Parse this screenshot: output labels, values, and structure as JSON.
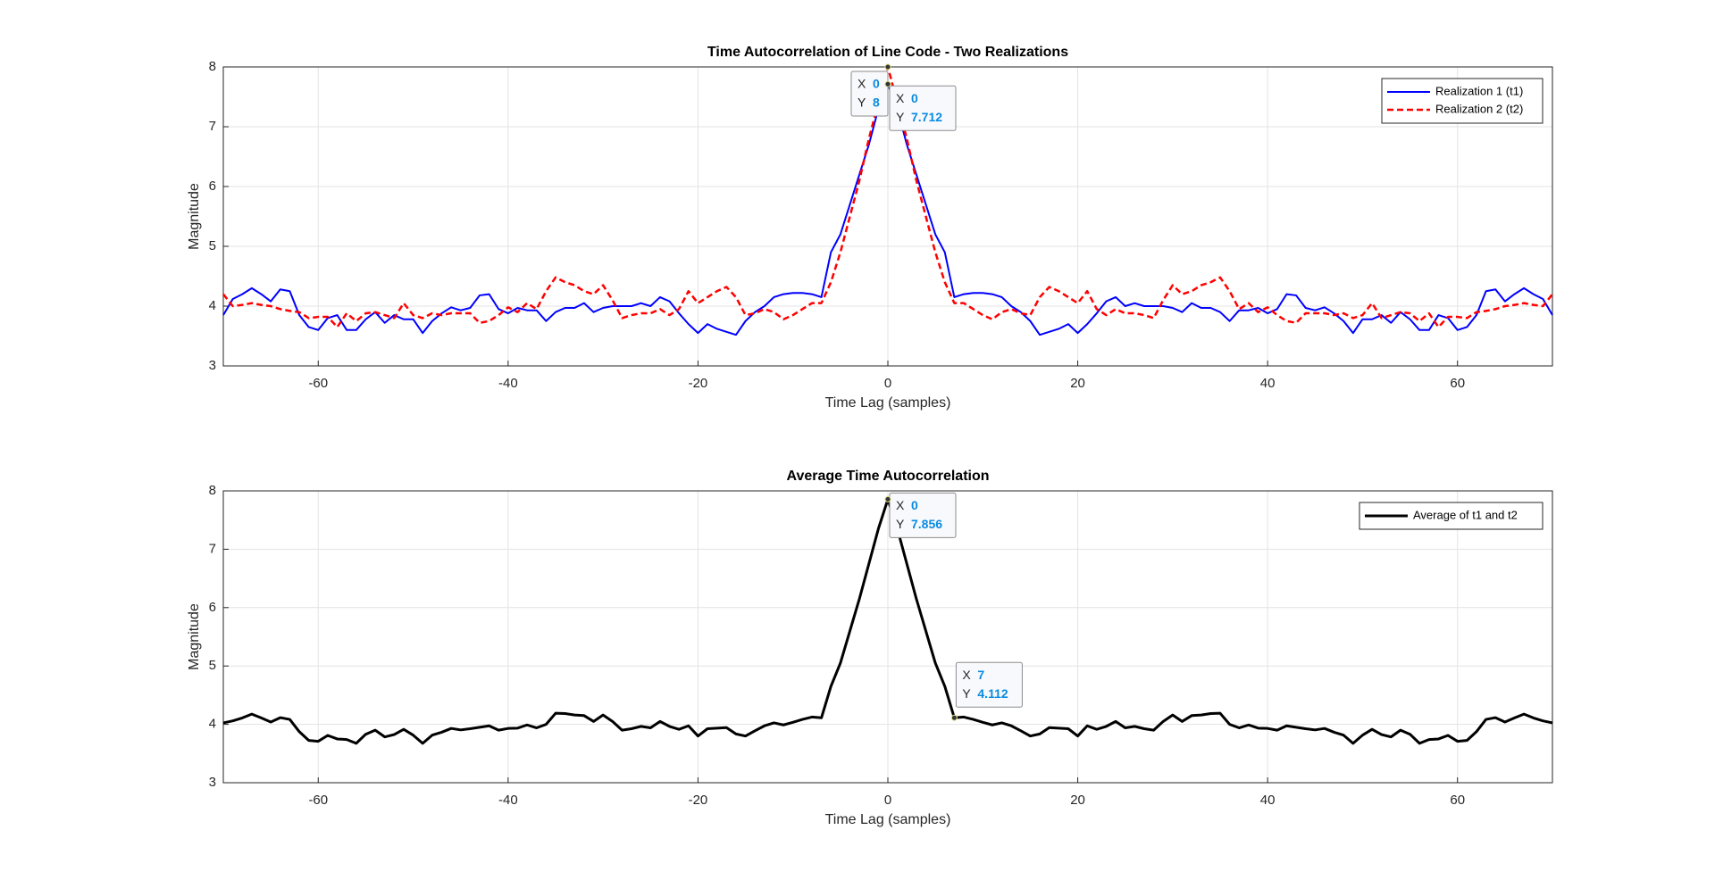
{
  "chart_data": [
    {
      "type": "line",
      "title": "Time Autocorrelation of Line Code - Two Realizations",
      "xlabel": "Time Lag (samples)",
      "ylabel": "Magnitude",
      "x": [
        -70,
        -69,
        -68,
        -67,
        -66,
        -65,
        -64,
        -63,
        -62,
        -61,
        -60,
        -59,
        -58,
        -57,
        -56,
        -55,
        -54,
        -53,
        -52,
        -51,
        -50,
        -49,
        -48,
        -47,
        -46,
        -45,
        -44,
        -43,
        -42,
        -41,
        -40,
        -39,
        -38,
        -37,
        -36,
        -35,
        -34,
        -33,
        -32,
        -31,
        -30,
        -29,
        -28,
        -27,
        -26,
        -25,
        -24,
        -23,
        -22,
        -21,
        -20,
        -19,
        -18,
        -17,
        -16,
        -15,
        -14,
        -13,
        -12,
        -11,
        -10,
        -9,
        -8,
        -7,
        -6,
        -5,
        -4,
        -3,
        -2,
        -1,
        0,
        1,
        2,
        3,
        4,
        5,
        6,
        7,
        8,
        9,
        10,
        11,
        12,
        13,
        14,
        15,
        16,
        17,
        18,
        19,
        20,
        21,
        22,
        23,
        24,
        25,
        26,
        27,
        28,
        29,
        30,
        31,
        32,
        33,
        34,
        35,
        36,
        37,
        38,
        39,
        40,
        41,
        42,
        43,
        44,
        45,
        46,
        47,
        48,
        49,
        50,
        51,
        52,
        53,
        54,
        55,
        56,
        57,
        58,
        59,
        60,
        61,
        62,
        63,
        64,
        65,
        66,
        67,
        68,
        69,
        70
      ],
      "series": [
        {
          "name": "Realization 1 (t1)",
          "color": "#0000ff",
          "linestyle": "solid",
          "linewidth": 2,
          "values": [
            3.85,
            4.12,
            4.2,
            4.3,
            4.2,
            4.08,
            4.28,
            4.25,
            3.85,
            3.65,
            3.6,
            3.8,
            3.85,
            3.6,
            3.6,
            3.78,
            3.9,
            3.72,
            3.85,
            3.78,
            3.78,
            3.55,
            3.75,
            3.88,
            3.98,
            3.93,
            3.97,
            4.18,
            4.2,
            3.95,
            3.88,
            3.97,
            3.93,
            3.93,
            3.75,
            3.9,
            3.97,
            3.97,
            4.05,
            3.9,
            3.97,
            4.0,
            4.0,
            4.0,
            4.05,
            4.0,
            4.15,
            4.08,
            3.88,
            3.7,
            3.55,
            3.7,
            3.62,
            3.57,
            3.52,
            3.75,
            3.9,
            4.0,
            4.15,
            4.2,
            4.22,
            4.22,
            4.2,
            4.15,
            4.9,
            5.2,
            5.7,
            6.2,
            6.7,
            7.3,
            7.712,
            7.3,
            6.7,
            6.2,
            5.7,
            5.2,
            4.9,
            4.15,
            4.2,
            4.22,
            4.22,
            4.2,
            4.15,
            4.0,
            3.9,
            3.75,
            3.52,
            3.57,
            3.62,
            3.7,
            3.55,
            3.7,
            3.88,
            4.08,
            4.15,
            4.0,
            4.05,
            4.0,
            4.0,
            4.0,
            3.97,
            3.9,
            4.05,
            3.97,
            3.97,
            3.9,
            3.75,
            3.93,
            3.93,
            3.97,
            3.88,
            3.95,
            4.2,
            4.18,
            3.97,
            3.93,
            3.98,
            3.88,
            3.75,
            3.55,
            3.78,
            3.78,
            3.85,
            3.72,
            3.9,
            3.78,
            3.6,
            3.6,
            3.85,
            3.8,
            3.6,
            3.65,
            3.85,
            4.25,
            4.28,
            4.08,
            4.2,
            4.3,
            4.2,
            4.12,
            3.85
          ]
        },
        {
          "name": "Realization 2 (t2)",
          "color": "#ff0000",
          "linestyle": "dashed",
          "linewidth": 2.5,
          "values": [
            4.2,
            4.0,
            4.02,
            4.05,
            4.02,
            4.0,
            3.95,
            3.92,
            3.9,
            3.8,
            3.82,
            3.82,
            3.65,
            3.88,
            3.75,
            3.88,
            3.9,
            3.85,
            3.8,
            4.05,
            3.85,
            3.8,
            3.88,
            3.85,
            3.88,
            3.88,
            3.88,
            3.72,
            3.75,
            3.85,
            3.98,
            3.9,
            4.05,
            3.95,
            4.25,
            4.48,
            4.4,
            4.35,
            4.25,
            4.2,
            4.35,
            4.1,
            3.8,
            3.85,
            3.88,
            3.88,
            3.95,
            3.85,
            3.95,
            4.25,
            4.05,
            4.15,
            4.25,
            4.32,
            4.15,
            3.85,
            3.88,
            3.95,
            3.9,
            3.78,
            3.85,
            3.95,
            4.05,
            4.05,
            4.4,
            4.9,
            5.5,
            6.1,
            6.8,
            7.4,
            8,
            7.4,
            6.8,
            6.1,
            5.5,
            4.9,
            4.4,
            4.05,
            4.05,
            3.95,
            3.85,
            3.78,
            3.9,
            3.95,
            3.88,
            3.85,
            4.15,
            4.32,
            4.25,
            4.15,
            4.05,
            4.25,
            3.95,
            3.85,
            3.95,
            3.88,
            3.88,
            3.85,
            3.8,
            4.1,
            4.35,
            4.2,
            4.25,
            4.35,
            4.4,
            4.48,
            4.25,
            3.95,
            4.05,
            3.9,
            3.98,
            3.85,
            3.75,
            3.72,
            3.88,
            3.88,
            3.88,
            3.85,
            3.88,
            3.8,
            3.85,
            4.05,
            3.8,
            3.85,
            3.9,
            3.88,
            3.75,
            3.88,
            3.65,
            3.82,
            3.82,
            3.8,
            3.9,
            3.92,
            3.95,
            4.0,
            4.02,
            4.05,
            4.02,
            4.0,
            4.2
          ]
        }
      ],
      "xlim": [
        -70,
        70
      ],
      "ylim": [
        3,
        8
      ],
      "xticks": [
        -60,
        -40,
        -20,
        0,
        20,
        40,
        60
      ],
      "yticks": [
        3,
        4,
        5,
        6,
        7,
        8
      ],
      "grid": true,
      "legend": "upper right",
      "datatips": [
        {
          "x_label": "X",
          "x": 0,
          "y_label": "Y",
          "y": 8
        },
        {
          "x_label": "X",
          "x": 0,
          "y_label": "Y",
          "y": 7.712
        }
      ]
    },
    {
      "type": "line",
      "title": "Average Time Autocorrelation",
      "xlabel": "Time Lag (samples)",
      "ylabel": "Magnitude",
      "x": [
        -70,
        -69,
        -68,
        -67,
        -66,
        -65,
        -64,
        -63,
        -62,
        -61,
        -60,
        -59,
        -58,
        -57,
        -56,
        -55,
        -54,
        -53,
        -52,
        -51,
        -50,
        -49,
        -48,
        -47,
        -46,
        -45,
        -44,
        -43,
        -42,
        -41,
        -40,
        -39,
        -38,
        -37,
        -36,
        -35,
        -34,
        -33,
        -32,
        -31,
        -30,
        -29,
        -28,
        -27,
        -26,
        -25,
        -24,
        -23,
        -22,
        -21,
        -20,
        -19,
        -18,
        -17,
        -16,
        -15,
        -14,
        -13,
        -12,
        -11,
        -10,
        -9,
        -8,
        -7,
        -6,
        -5,
        -4,
        -3,
        -2,
        -1,
        0,
        1,
        2,
        3,
        4,
        5,
        6,
        7,
        8,
        9,
        10,
        11,
        12,
        13,
        14,
        15,
        16,
        17,
        18,
        19,
        20,
        21,
        22,
        23,
        24,
        25,
        26,
        27,
        28,
        29,
        30,
        31,
        32,
        33,
        34,
        35,
        36,
        37,
        38,
        39,
        40,
        41,
        42,
        43,
        44,
        45,
        46,
        47,
        48,
        49,
        50,
        51,
        52,
        53,
        54,
        55,
        56,
        57,
        58,
        59,
        60,
        61,
        62,
        63,
        64,
        65,
        66,
        67,
        68,
        69,
        70
      ],
      "series": [
        {
          "name": "Average of t1 and t2",
          "color": "#000000",
          "linestyle": "solid",
          "linewidth": 3,
          "values": [
            4.025,
            4.06,
            4.11,
            4.175,
            4.11,
            4.04,
            4.115,
            4.085,
            3.875,
            3.725,
            3.71,
            3.81,
            3.75,
            3.74,
            3.675,
            3.83,
            3.9,
            3.785,
            3.825,
            3.915,
            3.815,
            3.675,
            3.815,
            3.865,
            3.93,
            3.905,
            3.925,
            3.95,
            3.975,
            3.9,
            3.93,
            3.935,
            3.99,
            3.94,
            4.0,
            4.19,
            4.185,
            4.16,
            4.15,
            4.05,
            4.16,
            4.05,
            3.9,
            3.925,
            3.965,
            3.94,
            4.05,
            3.965,
            3.915,
            3.975,
            3.8,
            3.925,
            3.935,
            3.945,
            3.835,
            3.8,
            3.89,
            3.975,
            4.025,
            3.99,
            4.035,
            4.085,
            4.125,
            4.112,
            4.65,
            5.05,
            5.6,
            6.15,
            6.75,
            7.35,
            7.856,
            7.35,
            6.75,
            6.15,
            5.6,
            5.05,
            4.65,
            4.112,
            4.125,
            4.085,
            4.035,
            3.99,
            4.025,
            3.975,
            3.89,
            3.8,
            3.835,
            3.945,
            3.935,
            3.925,
            3.8,
            3.975,
            3.915,
            3.965,
            4.05,
            3.94,
            3.965,
            3.925,
            3.9,
            4.05,
            4.16,
            4.05,
            4.15,
            4.16,
            4.185,
            4.19,
            4.0,
            3.94,
            3.99,
            3.935,
            3.93,
            3.9,
            3.975,
            3.95,
            3.925,
            3.905,
            3.93,
            3.865,
            3.815,
            3.675,
            3.815,
            3.915,
            3.825,
            3.785,
            3.9,
            3.83,
            3.675,
            3.74,
            3.75,
            3.81,
            3.71,
            3.725,
            3.875,
            4.085,
            4.115,
            4.04,
            4.11,
            4.175,
            4.11,
            4.06,
            4.025
          ]
        }
      ],
      "xlim": [
        -70,
        70
      ],
      "ylim": [
        3,
        8
      ],
      "xticks": [
        -60,
        -40,
        -20,
        0,
        20,
        40,
        60
      ],
      "yticks": [
        3,
        4,
        5,
        6,
        7,
        8
      ],
      "grid": true,
      "legend": "upper right",
      "datatips": [
        {
          "x_label": "X",
          "x": 0,
          "y_label": "Y",
          "y": 7.856
        },
        {
          "x_label": "X",
          "x": 7,
          "y_label": "Y",
          "y": 4.112
        }
      ]
    }
  ]
}
